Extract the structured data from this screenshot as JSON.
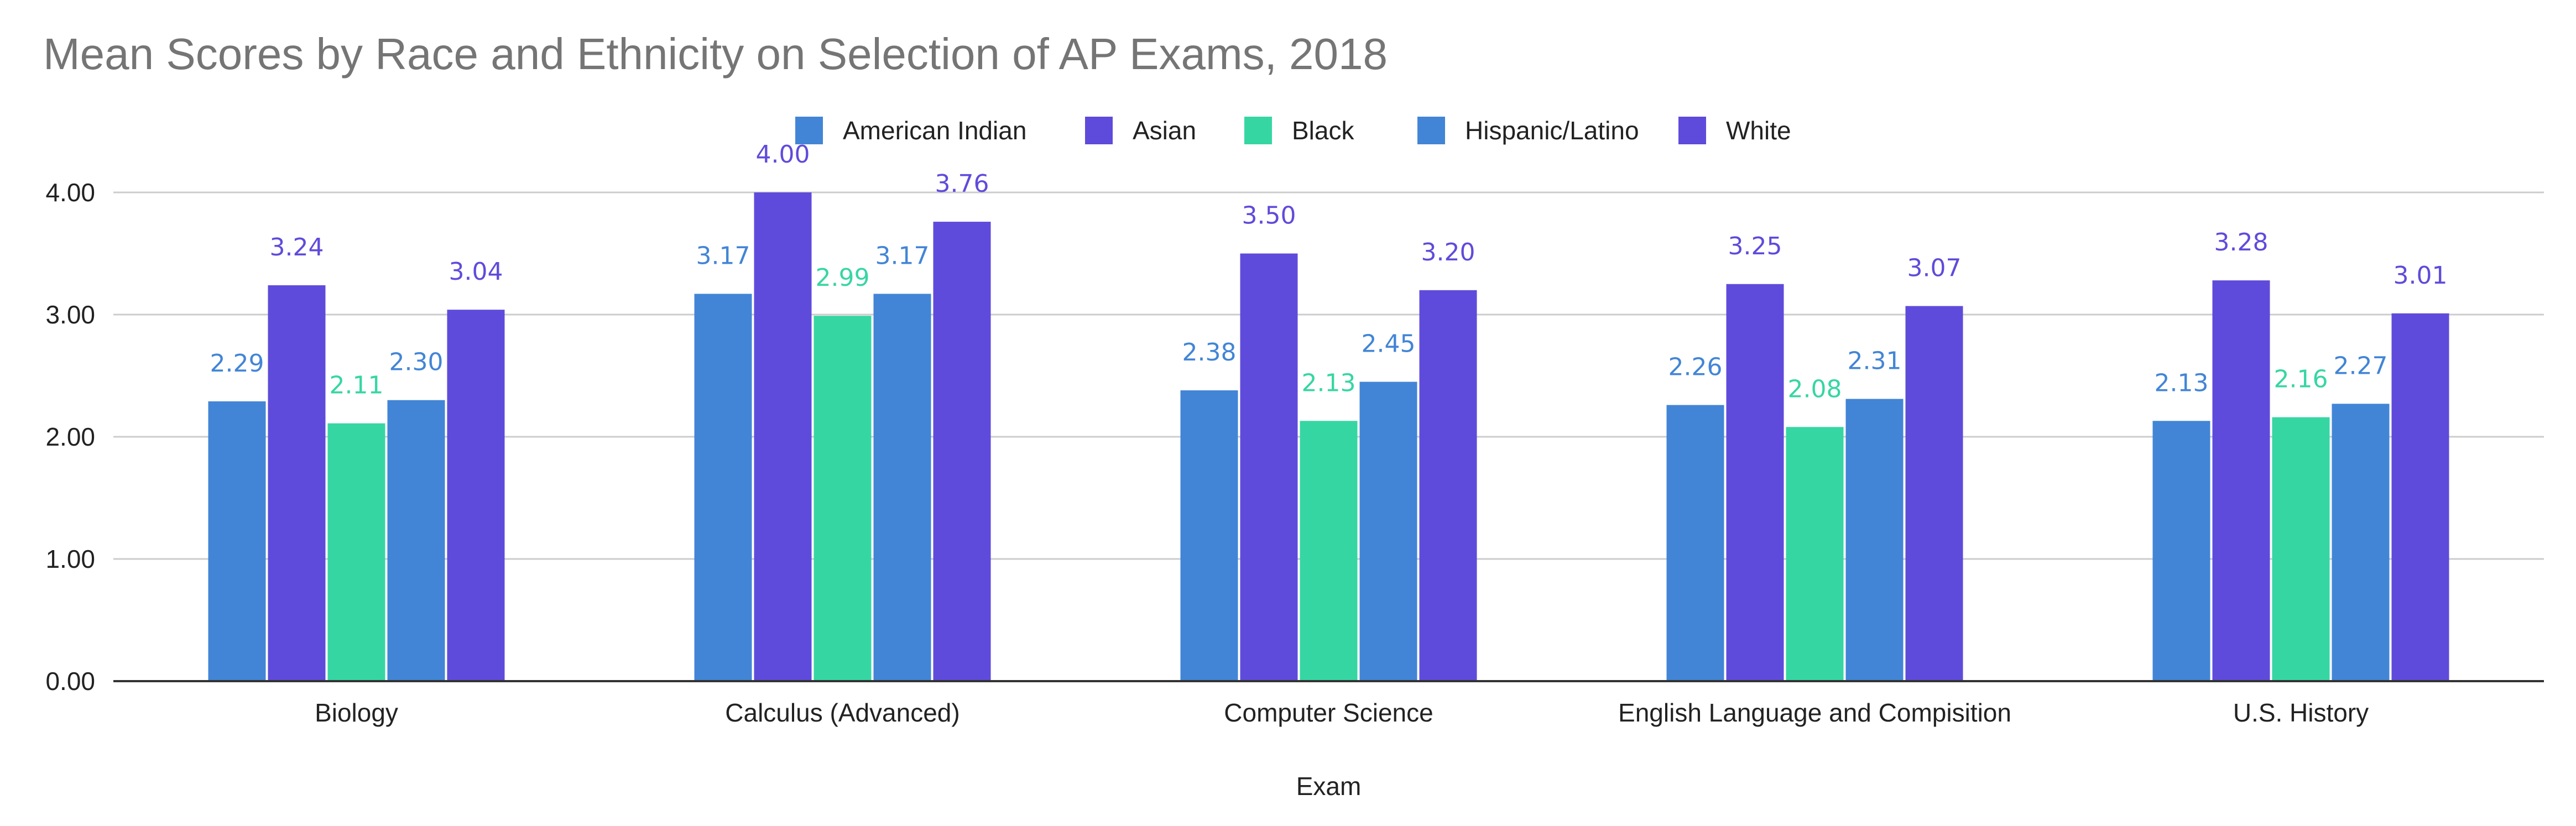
{
  "chart_data": {
    "type": "bar",
    "title": "Mean Scores by Race and Ethnicity on Selection of AP Exams, 2018",
    "xlabel": "Exam",
    "ylabel": "",
    "ylim": [
      0,
      4
    ],
    "yticks": [
      "0.00",
      "1.00",
      "2.00",
      "3.00",
      "4.00"
    ],
    "grid": true,
    "legend_position": "top",
    "categories": [
      "Biology",
      "Calculus (Advanced)",
      "Computer Science",
      "English Language and Compisition",
      "U.S. History"
    ],
    "series": [
      {
        "name": "American Indian",
        "color": "#4285d6",
        "values": [
          2.29,
          3.17,
          2.38,
          2.26,
          2.13
        ],
        "labels": [
          "2.29",
          "3.17",
          "2.38",
          "2.26",
          "2.13"
        ]
      },
      {
        "name": "Asian",
        "color": "#5f4bdb",
        "values": [
          3.24,
          4.0,
          3.5,
          3.25,
          3.28
        ],
        "labels": [
          "3.24",
          "4.00",
          "3.50",
          "3.25",
          "3.28"
        ]
      },
      {
        "name": "Black",
        "color": "#36d6a3",
        "values": [
          2.11,
          2.99,
          2.13,
          2.08,
          2.16
        ],
        "labels": [
          "2.11",
          "2.99",
          "2.13",
          "2.08",
          "2.16"
        ]
      },
      {
        "name": "Hispanic/Latino",
        "color": "#4285d6",
        "values": [
          2.3,
          3.17,
          2.45,
          2.31,
          2.27
        ],
        "labels": [
          "2.30",
          "3.17",
          "2.45",
          "2.31",
          "2.27"
        ]
      },
      {
        "name": "White",
        "color": "#5f4bdb",
        "values": [
          3.04,
          3.76,
          3.2,
          3.07,
          3.01
        ],
        "labels": [
          "3.04",
          "3.76",
          "3.20",
          "3.07",
          "3.01"
        ]
      }
    ]
  }
}
